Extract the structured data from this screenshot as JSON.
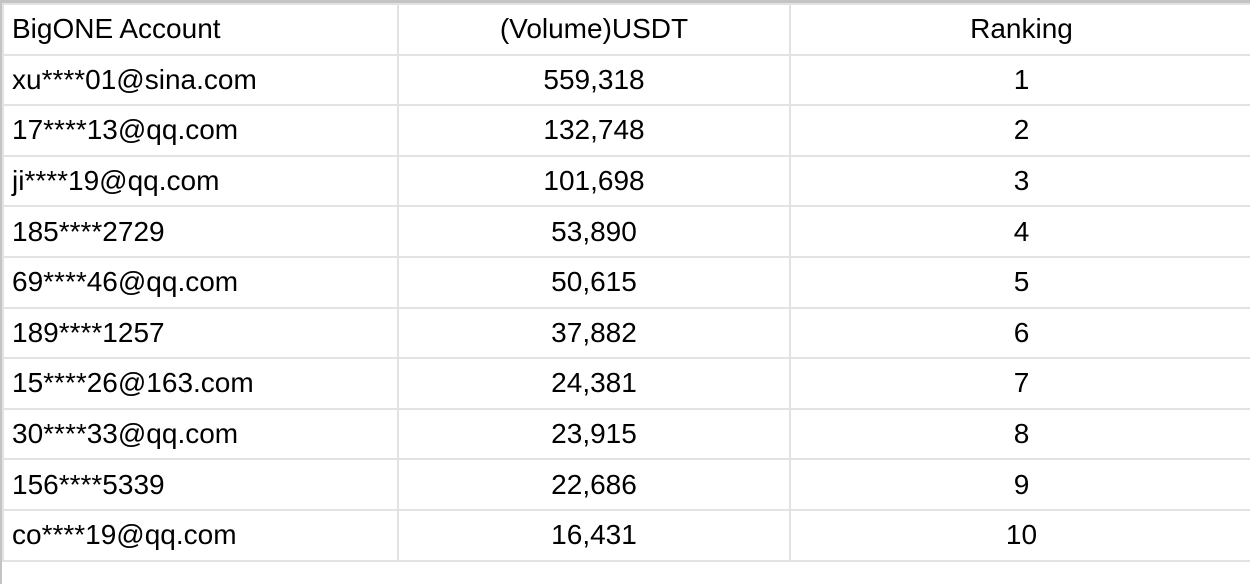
{
  "table": {
    "headers": [
      "BigONE Account",
      "(Volume)USDT",
      "Ranking"
    ],
    "rows": [
      {
        "account": "xu****01@sina.com",
        "volume": "559,318",
        "ranking": "1"
      },
      {
        "account": "17****13@qq.com",
        "volume": "132,748",
        "ranking": "2"
      },
      {
        "account": "ji****19@qq.com",
        "volume": "101,698",
        "ranking": "3"
      },
      {
        "account": "185****2729",
        "volume": "53,890",
        "ranking": "4"
      },
      {
        "account": "69****46@qq.com",
        "volume": "50,615",
        "ranking": "5"
      },
      {
        "account": "189****1257",
        "volume": "37,882",
        "ranking": "6"
      },
      {
        "account": "15****26@163.com",
        "volume": "24,381",
        "ranking": "7"
      },
      {
        "account": "30****33@qq.com",
        "volume": "23,915",
        "ranking": "8"
      },
      {
        "account": "156****5339",
        "volume": "22,686",
        "ranking": "9"
      },
      {
        "account": "co****19@qq.com",
        "volume": "16,431",
        "ranking": "10"
      }
    ]
  }
}
